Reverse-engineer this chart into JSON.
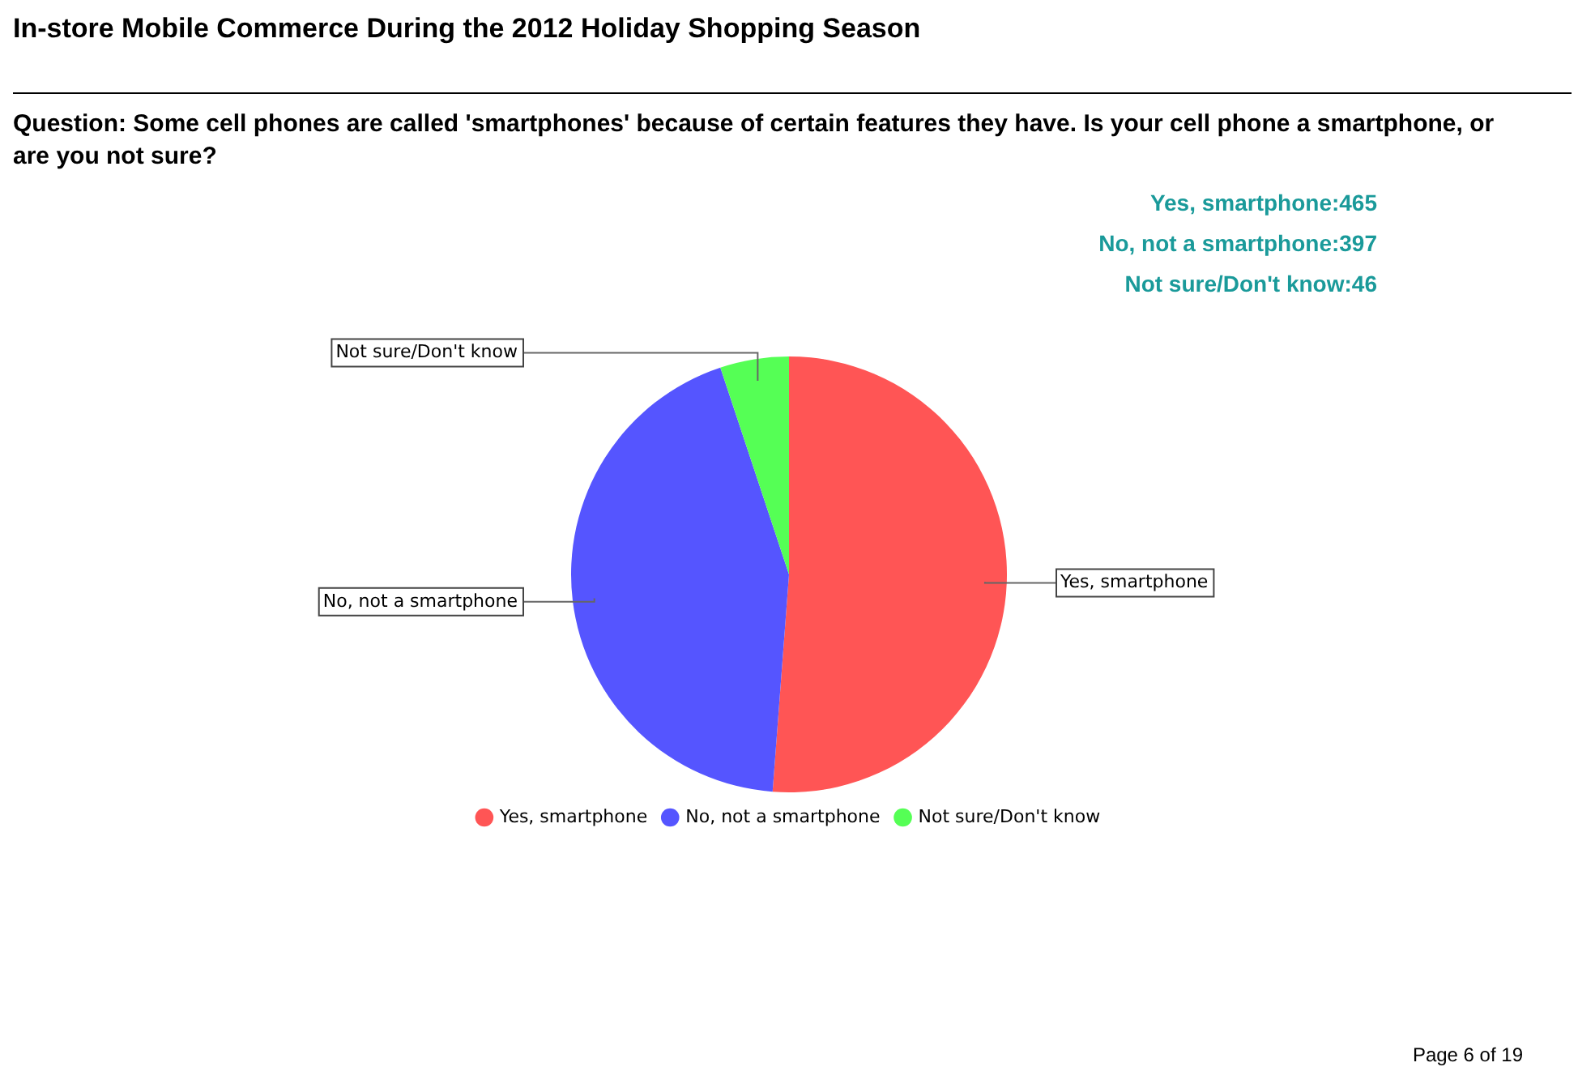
{
  "chart_data": {
    "type": "pie",
    "title": "In-store Mobile Commerce During the 2012 Holiday Shopping Season",
    "subtitle": "Question: Some cell phones are called 'smartphones' because of certain features they have. Is your cell phone a smartphone, or are you not sure?",
    "categories": [
      "Yes, smartphone",
      "No, not a smartphone",
      "Not sure/Don't know"
    ],
    "values": [
      51.2,
      43.7,
      5.1
    ],
    "colors": [
      "#ff5555",
      "#5555ff",
      "#55ff55"
    ],
    "legend": "bottom",
    "annotations": [
      "Yes, smartphone:465",
      "No, not a smartphone:397",
      "Not sure/Don't know:46",
      "Page 6 of 19"
    ]
  }
}
